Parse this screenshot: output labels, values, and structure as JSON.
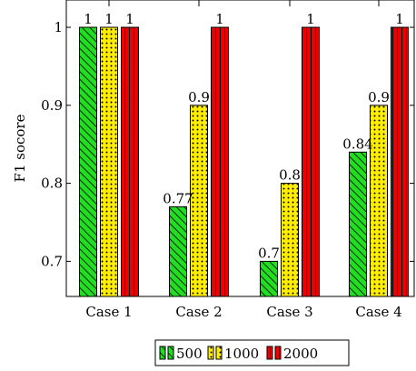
{
  "chart_data": {
    "type": "bar",
    "title": "",
    "xlabel": "",
    "ylabel": "F1 socore",
    "categories": [
      "Case 1",
      "Case 2",
      "Case 3",
      "Case 4"
    ],
    "ylim": [
      0.655,
      1.035
    ],
    "yticks": [
      0.7,
      0.8,
      0.9,
      1
    ],
    "ytick_labels": [
      "0.7",
      "0.8",
      "0.9",
      "1"
    ],
    "legend_position": "bottom",
    "series": [
      {
        "name": "500",
        "values": [
          1,
          0.77,
          0.7,
          0.84
        ],
        "labels": [
          "1",
          "0.77",
          "0.7",
          "0.84"
        ],
        "color": "#22dd22",
        "pattern": "diagonal-lines"
      },
      {
        "name": "1000",
        "values": [
          1,
          0.9,
          0.8,
          0.9
        ],
        "labels": [
          "1",
          "0.9",
          "0.8",
          "0.9"
        ],
        "color": "#ffee00",
        "pattern": "dots"
      },
      {
        "name": "2000",
        "values": [
          1,
          1,
          1,
          1
        ],
        "labels": [
          "1",
          "1",
          "1",
          "1"
        ],
        "color": "#ee0000",
        "pattern": "vertical-lines"
      }
    ]
  }
}
